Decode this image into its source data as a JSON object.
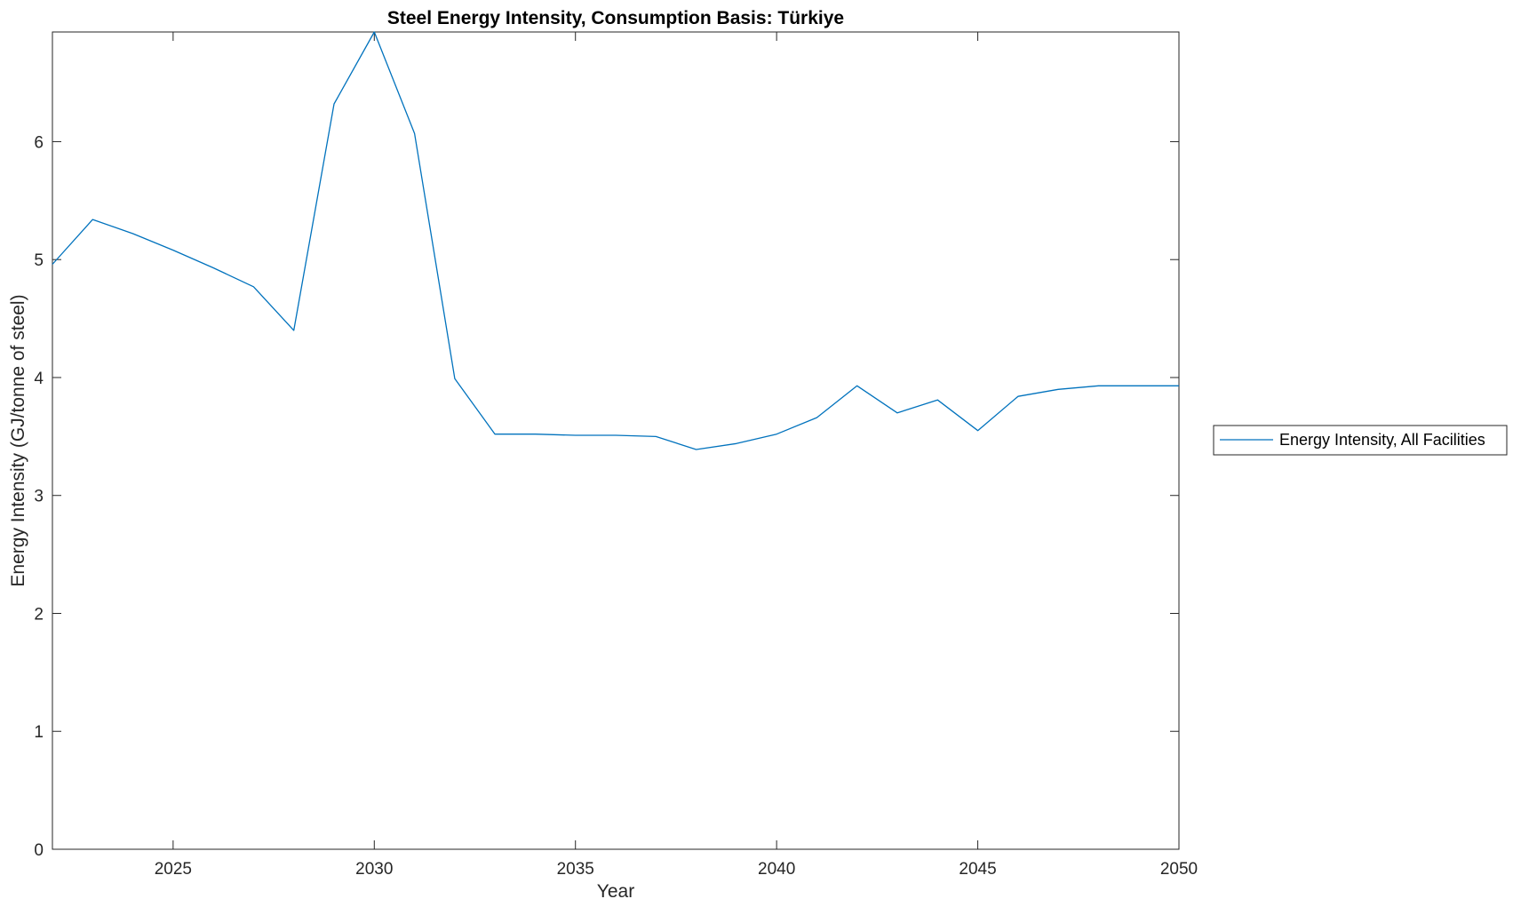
{
  "chart_data": {
    "type": "line",
    "title": "Steel Energy Intensity, Consumption Basis: Türkiye",
    "xlabel": "Year",
    "ylabel": "Energy Intensity (GJ/tonne of steel)",
    "xlim": [
      2022,
      2050
    ],
    "ylim": [
      0,
      6.93
    ],
    "x_ticks": [
      2025,
      2030,
      2035,
      2040,
      2045,
      2050
    ],
    "y_ticks": [
      0,
      1,
      2,
      3,
      4,
      5,
      6
    ],
    "grid": false,
    "legend_position": "outside-right",
    "x": [
      2022,
      2023,
      2024,
      2025,
      2026,
      2027,
      2028,
      2029,
      2030,
      2031,
      2032,
      2033,
      2034,
      2035,
      2036,
      2037,
      2038,
      2039,
      2040,
      2041,
      2042,
      2043,
      2044,
      2045,
      2046,
      2047,
      2048,
      2049,
      2050
    ],
    "series": [
      {
        "name": "Energy Intensity, All Facilities",
        "color": "#0072BD",
        "values": [
          4.96,
          5.34,
          5.22,
          5.08,
          4.93,
          4.77,
          4.4,
          6.32,
          6.93,
          6.07,
          3.99,
          3.52,
          3.52,
          3.51,
          3.51,
          3.5,
          3.39,
          3.44,
          3.52,
          3.66,
          3.93,
          3.7,
          3.81,
          3.55,
          3.84,
          3.9,
          3.93,
          3.93,
          3.93
        ]
      }
    ]
  }
}
